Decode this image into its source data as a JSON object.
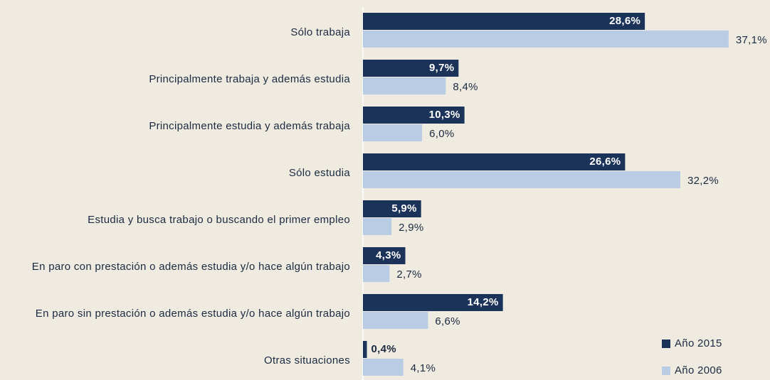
{
  "chart_data": {
    "type": "bar",
    "orientation": "horizontal",
    "categories": [
      "Sólo trabaja",
      "Principalmente trabaja y además estudia",
      "Principalmente estudia y además trabaja",
      "Sólo estudia",
      "Estudia y busca trabajo o buscando el primer empleo",
      "En paro con prestación o además estudia y/o hace algún trabajo",
      "En paro sin prestación o además estudia y/o hace algún trabajo",
      "Otras situaciones"
    ],
    "series": [
      {
        "name": "Año 2015",
        "color": "#1b3358",
        "values": [
          28.6,
          9.7,
          10.3,
          26.6,
          5.9,
          4.3,
          14.2,
          0.4
        ],
        "value_labels": [
          "28,6%",
          "9,7%",
          "10,3%",
          "26,6%",
          "5,9%",
          "4,3%",
          "14,2%",
          "0,4%"
        ]
      },
      {
        "name": "Año 2006",
        "color": "#b8cce4",
        "values": [
          37.1,
          8.4,
          6.0,
          32.2,
          2.9,
          2.7,
          6.6,
          4.1
        ],
        "value_labels": [
          "37,1%",
          "8,4%",
          "6,0%",
          "32,2%",
          "2,9%",
          "2,7%",
          "6,6%",
          "4,1%"
        ]
      }
    ],
    "xlim": [
      0,
      40
    ],
    "legend": "bottom-right"
  }
}
